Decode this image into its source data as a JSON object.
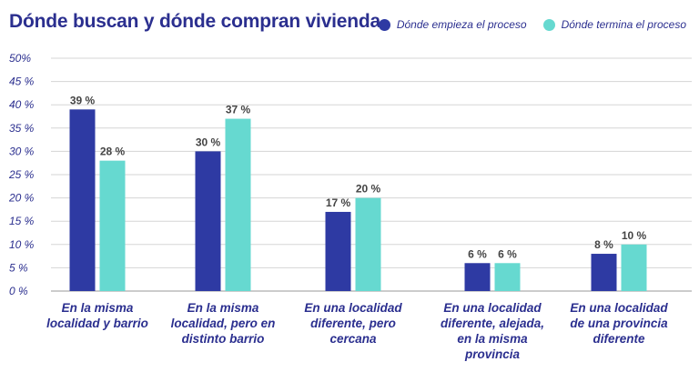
{
  "header": {
    "title": "Dónde buscan y dónde compran vivienda"
  },
  "colors": {
    "series1": "#2e3aa3",
    "series2": "#66d9d0",
    "grid": "#d5d5d5",
    "text": "#2b2f8f"
  },
  "chart_data": {
    "type": "bar",
    "title": "Dónde buscan y dónde compran vivienda",
    "categories": [
      [
        "En la misma",
        "localidad y barrio"
      ],
      [
        "En la misma",
        "localidad, pero en",
        "distinto barrio"
      ],
      [
        "En una localidad",
        "diferente, pero",
        "cercana"
      ],
      [
        "En una localidad",
        "diferente, alejada,",
        "en la misma",
        "provincia"
      ],
      [
        "En una localidad",
        "de una provincia",
        "diferente"
      ]
    ],
    "series": [
      {
        "name": "Dónde empieza el proceso",
        "values": [
          39,
          30,
          17,
          6,
          8
        ],
        "labels": [
          "39 %",
          "30 %",
          "17 %",
          "6 %",
          "8 %"
        ]
      },
      {
        "name": "Dónde termina el proceso",
        "values": [
          28,
          37,
          20,
          6,
          10
        ],
        "labels": [
          "28 %",
          "37 %",
          "20 %",
          "6 %",
          "10 %"
        ]
      }
    ],
    "yticks": [
      "0 %",
      "5 %",
      "10 %",
      "15 %",
      "20 %",
      "25 %",
      "30 %",
      "35 %",
      "40 %",
      "45 %",
      "50%"
    ],
    "ylim": [
      0,
      50
    ],
    "grid": true,
    "legend": "top-right"
  }
}
